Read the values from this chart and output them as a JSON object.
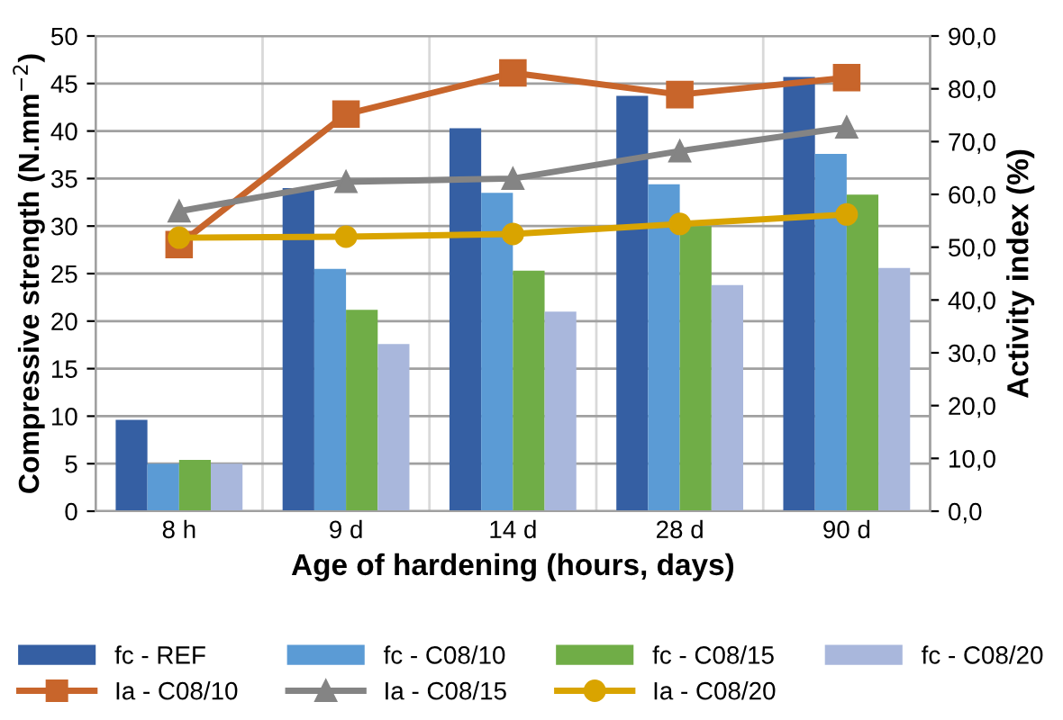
{
  "chart_data": {
    "type": "bar",
    "xlabel": "Age of hardening (hours, days)",
    "ylabel": "Compressive strength (N.mm$^{−2}$)",
    "y2label": "Activity index (%)",
    "categories": [
      "8 h",
      "9 d",
      "14 d",
      "28 d",
      "90 d"
    ],
    "series": [
      {
        "name": "fc - REF",
        "color": "#355fa3",
        "values": [
          9.6,
          34.0,
          40.3,
          43.7,
          45.7
        ]
      },
      {
        "name": "fc - C08/10",
        "color": "#5b9bd5",
        "values": [
          5.0,
          25.5,
          33.5,
          34.4,
          37.6
        ]
      },
      {
        "name": "fc - C08/15",
        "color": "#70ad47",
        "values": [
          5.4,
          21.2,
          25.3,
          30.0,
          33.3
        ]
      },
      {
        "name": "fc - C08/20",
        "color": "#a9b7dc",
        "values": [
          5.0,
          17.6,
          21.0,
          23.8,
          25.6
        ]
      },
      {
        "name": "Ia - C08/10",
        "type": "line",
        "axis": "y2",
        "marker": "square",
        "color": "#c8652b",
        "values": [
          50.5,
          75.2,
          83.0,
          78.9,
          82.1
        ]
      },
      {
        "name": "Ia - C08/15",
        "type": "line",
        "axis": "y2",
        "marker": "triangle",
        "color": "#848484",
        "values": [
          56.8,
          62.4,
          63.0,
          68.2,
          72.7
        ]
      },
      {
        "name": "Ia - C08/20",
        "type": "line",
        "axis": "y2",
        "marker": "circle",
        "color": "#d9a400",
        "values": [
          51.8,
          52.0,
          52.5,
          54.4,
          56.2
        ]
      }
    ],
    "ylim": [
      0,
      50
    ],
    "yticks": [
      0,
      5,
      10,
      15,
      20,
      25,
      30,
      35,
      40,
      45,
      50
    ],
    "y2lim": [
      0,
      90
    ],
    "y2ticks": [
      {
        "value": 0,
        "label": "0,0"
      },
      {
        "value": 10,
        "label": "10,0"
      },
      {
        "value": 20,
        "label": "20,0"
      },
      {
        "value": 30,
        "label": "30,0"
      },
      {
        "value": 40,
        "label": "40,0"
      },
      {
        "value": 50,
        "label": "50,0"
      },
      {
        "value": 60,
        "label": "60,0"
      },
      {
        "value": 70,
        "label": "70,0"
      },
      {
        "value": 80,
        "label": "80,0"
      },
      {
        "value": 90,
        "label": "90,0"
      }
    ],
    "grid": true,
    "legend": "bottom"
  }
}
